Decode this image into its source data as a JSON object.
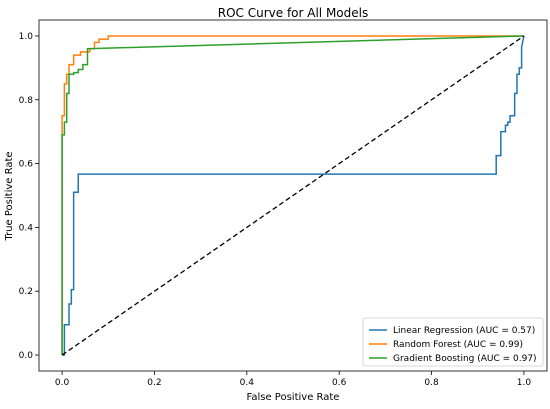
{
  "chart_data": {
    "type": "line",
    "title": "ROC Curve for All Models",
    "xlabel": "False Positive Rate",
    "ylabel": "True Positive Rate",
    "xlim": [
      -0.05,
      1.05
    ],
    "ylim": [
      -0.05,
      1.05
    ],
    "xticks": [
      0.0,
      0.2,
      0.4,
      0.6,
      0.8,
      1.0
    ],
    "yticks": [
      0.0,
      0.2,
      0.4,
      0.6,
      0.8,
      1.0
    ],
    "legend_position": "lower-right",
    "grid": false,
    "series": [
      {
        "name": "Linear Regression (AUC = 0.57)",
        "color": "#1f77b4",
        "x": [
          0,
          0.005,
          0.005,
          0.015,
          0.015,
          0.02,
          0.02,
          0.025,
          0.025,
          0.035,
          0.035,
          0.94,
          0.94,
          0.95,
          0.95,
          0.96,
          0.96,
          0.965,
          0.965,
          0.97,
          0.97,
          0.98,
          0.98,
          0.985,
          0.985,
          0.99,
          0.99,
          0.995,
          0.995,
          1.0
        ],
        "y": [
          0,
          0,
          0.095,
          0.095,
          0.16,
          0.16,
          0.205,
          0.205,
          0.51,
          0.51,
          0.567,
          0.567,
          0.625,
          0.625,
          0.7,
          0.7,
          0.72,
          0.72,
          0.73,
          0.73,
          0.75,
          0.75,
          0.82,
          0.82,
          0.88,
          0.88,
          0.9,
          0.9,
          0.965,
          1.0
        ]
      },
      {
        "name": "Random Forest (AUC = 0.99)",
        "color": "#ff7f0e",
        "x": [
          0,
          0.0,
          0.005,
          0.005,
          0.01,
          0.01,
          0.015,
          0.015,
          0.025,
          0.025,
          0.04,
          0.04,
          0.06,
          0.06,
          0.07,
          0.07,
          0.08,
          0.08,
          0.1,
          0.1,
          1.0
        ],
        "y": [
          0,
          0.75,
          0.75,
          0.85,
          0.85,
          0.88,
          0.88,
          0.91,
          0.91,
          0.94,
          0.94,
          0.95,
          0.95,
          0.96,
          0.96,
          0.98,
          0.98,
          0.99,
          0.99,
          1.0,
          1.0
        ]
      },
      {
        "name": "Gradient Boosting (AUC = 0.97)",
        "color": "#2ca02c",
        "x": [
          0,
          0.0,
          0.005,
          0.005,
          0.01,
          0.01,
          0.015,
          0.015,
          0.025,
          0.025,
          0.035,
          0.035,
          0.045,
          0.045,
          0.055,
          0.055,
          1.0
        ],
        "y": [
          0,
          0.69,
          0.69,
          0.73,
          0.73,
          0.82,
          0.82,
          0.88,
          0.88,
          0.885,
          0.885,
          0.895,
          0.895,
          0.91,
          0.91,
          0.96,
          1.0
        ]
      },
      {
        "name": "",
        "color": "#000000",
        "dashed": true,
        "x": [
          0,
          1
        ],
        "y": [
          0,
          1
        ]
      }
    ]
  }
}
